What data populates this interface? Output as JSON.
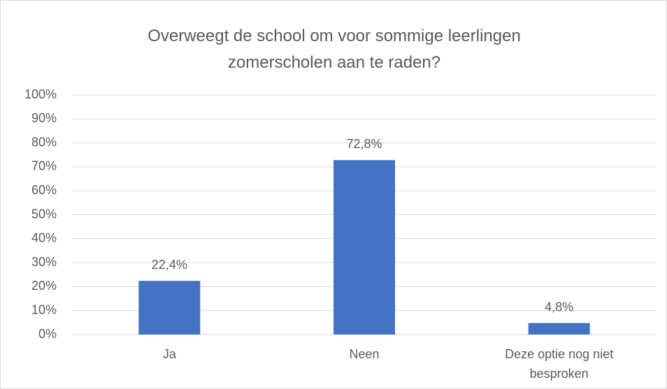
{
  "chart_data": {
    "type": "bar",
    "title": "Overweegt de school om voor sommige leerlingen zomerscholen aan te raden?",
    "categories": [
      "Ja",
      "Neen",
      "Deze optie nog niet besproken"
    ],
    "values": [
      22.4,
      72.8,
      4.8
    ],
    "value_labels": [
      "22,4%",
      "72,8%",
      "4,8%"
    ],
    "color": "#4472c4",
    "ylim": [
      0,
      100
    ],
    "yticks": [
      {
        "value": 0,
        "label": "0%"
      },
      {
        "value": 10,
        "label": "10%"
      },
      {
        "value": 20,
        "label": "20%"
      },
      {
        "value": 30,
        "label": "30%"
      },
      {
        "value": 40,
        "label": "40%"
      },
      {
        "value": 50,
        "label": "50%"
      },
      {
        "value": 60,
        "label": "60%"
      },
      {
        "value": 70,
        "label": "70%"
      },
      {
        "value": 80,
        "label": "80%"
      },
      {
        "value": 90,
        "label": "90%"
      },
      {
        "value": 100,
        "label": "100%"
      }
    ],
    "grid": true
  }
}
